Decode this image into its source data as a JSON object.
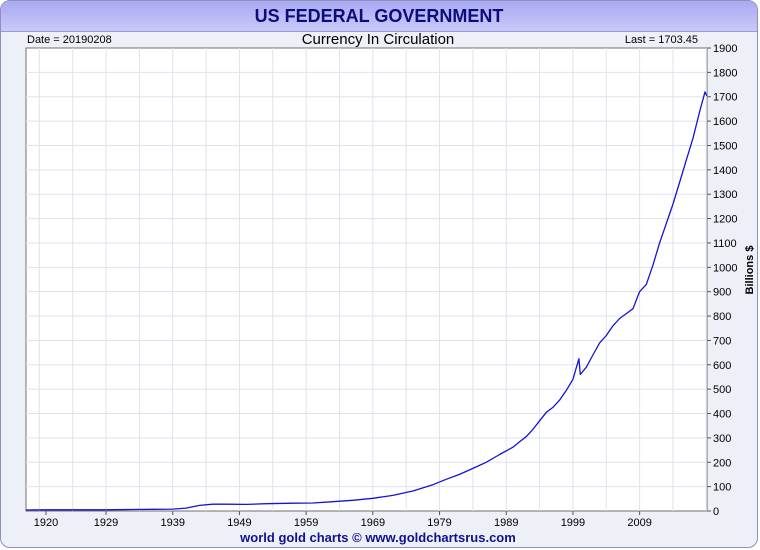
{
  "header": {
    "title": "US FEDERAL GOVERNMENT",
    "date_label": "Date = 20190208",
    "last_label": "Last = 1703.45",
    "footer": "world gold charts © www.goldchartsrus.com"
  },
  "colors": {
    "line": "#1414d2",
    "title_bg": "#b9b9f6",
    "title_text": "#0c0c7a",
    "grid": "#dde3ee"
  },
  "chart_data": {
    "type": "line",
    "title": "Currency In Circulation",
    "xlabel": "",
    "ylabel": "Billions $",
    "xlim": [
      1917,
      2019.1
    ],
    "ylim": [
      0,
      1900
    ],
    "x_ticks": [
      1920,
      1929,
      1939,
      1949,
      1959,
      1969,
      1979,
      1989,
      1999,
      2009
    ],
    "y_ticks": [
      0,
      100,
      200,
      300,
      400,
      500,
      600,
      700,
      800,
      900,
      1000,
      1100,
      1200,
      1300,
      1400,
      1500,
      1600,
      1700,
      1800,
      1900
    ],
    "grid": true,
    "y_axis_side": "right",
    "series": [
      {
        "points": [
          [
            1917,
            4
          ],
          [
            1920,
            5
          ],
          [
            1925,
            5
          ],
          [
            1929,
            5
          ],
          [
            1933,
            6
          ],
          [
            1936,
            7
          ],
          [
            1939,
            8
          ],
          [
            1941,
            12
          ],
          [
            1943,
            23
          ],
          [
            1945,
            28
          ],
          [
            1947,
            28
          ],
          [
            1950,
            27
          ],
          [
            1953,
            30
          ],
          [
            1957,
            32
          ],
          [
            1960,
            33
          ],
          [
            1963,
            38
          ],
          [
            1966,
            44
          ],
          [
            1969,
            52
          ],
          [
            1972,
            64
          ],
          [
            1975,
            82
          ],
          [
            1978,
            108
          ],
          [
            1980,
            130
          ],
          [
            1982,
            150
          ],
          [
            1984,
            175
          ],
          [
            1986,
            200
          ],
          [
            1988,
            232
          ],
          [
            1990,
            262
          ],
          [
            1991,
            284
          ],
          [
            1992,
            305
          ],
          [
            1993,
            335
          ],
          [
            1994,
            370
          ],
          [
            1995,
            405
          ],
          [
            1996,
            425
          ],
          [
            1997,
            455
          ],
          [
            1998,
            495
          ],
          [
            1999,
            540
          ],
          [
            1999.9,
            625
          ],
          [
            2000.1,
            560
          ],
          [
            2001,
            590
          ],
          [
            2002,
            640
          ],
          [
            2003,
            690
          ],
          [
            2004,
            720
          ],
          [
            2005,
            760
          ],
          [
            2006,
            790
          ],
          [
            2007,
            810
          ],
          [
            2008,
            830
          ],
          [
            2008.7,
            880
          ],
          [
            2009,
            900
          ],
          [
            2010,
            930
          ],
          [
            2011,
            1010
          ],
          [
            2012,
            1100
          ],
          [
            2013,
            1180
          ],
          [
            2014,
            1260
          ],
          [
            2015,
            1350
          ],
          [
            2016,
            1440
          ],
          [
            2017,
            1530
          ],
          [
            2018,
            1640
          ],
          [
            2018.8,
            1720
          ],
          [
            2019.1,
            1703
          ]
        ]
      }
    ]
  }
}
